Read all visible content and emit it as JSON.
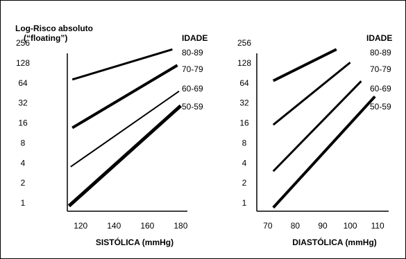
{
  "chart_data": [
    {
      "type": "line",
      "xlabel": "SISTÓLICA (mmHg)",
      "ylabel_line1": "Log-Risco absoluto",
      "ylabel_line2": "(“floating”)",
      "legend_title": "IDADE",
      "y_scale": "log2",
      "ylim": [
        0.75,
        256
      ],
      "xlim": [
        112,
        184
      ],
      "x_ticks": [
        120,
        140,
        160,
        180
      ],
      "y_ticks": [
        1,
        2,
        4,
        8,
        16,
        32,
        64,
        128,
        256
      ],
      "series": [
        {
          "name": "80-89",
          "x": [
            115,
            175
          ],
          "y": [
            72,
            205
          ],
          "weight": 3
        },
        {
          "name": "70-79",
          "x": [
            115,
            178
          ],
          "y": [
            13.5,
            118
          ],
          "weight": 4
        },
        {
          "name": "60-69",
          "x": [
            114,
            179
          ],
          "y": [
            3.5,
            48
          ],
          "weight": 2
        },
        {
          "name": "50-59",
          "x": [
            113,
            180
          ],
          "y": [
            0.9,
            29
          ],
          "weight": 5
        }
      ]
    },
    {
      "type": "line",
      "xlabel": "DIASTÓLICA (mmHg)",
      "legend_title": "IDADE",
      "y_scale": "log2",
      "ylim": [
        0.75,
        256
      ],
      "xlim": [
        66,
        114
      ],
      "x_ticks": [
        70,
        80,
        90,
        100,
        110
      ],
      "y_ticks": [
        1,
        2,
        4,
        8,
        16,
        32,
        64,
        128,
        256
      ],
      "series": [
        {
          "name": "80-89",
          "x": [
            72,
            95
          ],
          "y": [
            69,
            205
          ],
          "weight": 4
        },
        {
          "name": "70-79",
          "x": [
            72,
            100
          ],
          "y": [
            15,
            130
          ],
          "weight": 3
        },
        {
          "name": "60-69",
          "x": [
            72,
            104
          ],
          "y": [
            3,
            68
          ],
          "weight": 3
        },
        {
          "name": "50-59",
          "x": [
            72,
            109
          ],
          "y": [
            0.85,
            40
          ],
          "weight": 4
        }
      ]
    }
  ]
}
